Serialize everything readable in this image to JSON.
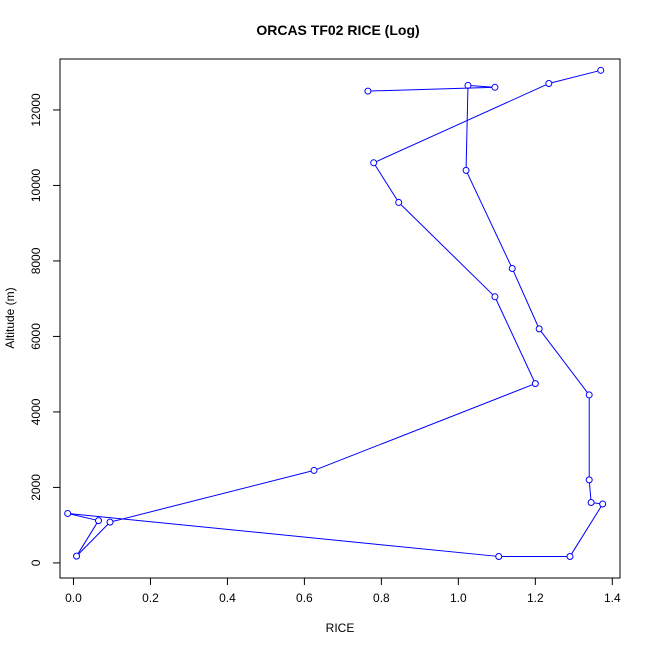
{
  "chart_data": {
    "type": "line",
    "title": "ORCAS TF02 RICE (Log)",
    "xlabel": "RICE",
    "ylabel": "Altitude (m)",
    "xlim": [
      -0.035,
      1.42
    ],
    "ylim": [
      -400,
      13350
    ],
    "x_ticks": [
      0,
      0.2,
      0.4,
      0.6,
      0.8,
      1.0,
      1.2,
      1.4
    ],
    "x_tick_labels": [
      "0.0",
      "0.2",
      "0.4",
      "0.6",
      "0.8",
      "1.0",
      "1.2",
      "1.4"
    ],
    "y_ticks": [
      0,
      2000,
      4000,
      6000,
      8000,
      10000,
      12000
    ],
    "y_tick_labels": [
      "0",
      "2000",
      "4000",
      "6000",
      "8000",
      "10000",
      "12000"
    ],
    "grid": false,
    "markers": "open-circle",
    "color": "#0000ff",
    "series": [
      {
        "x": [
          1.37,
          1.235,
          0.78,
          0.845,
          1.095,
          1.2,
          0.625,
          0.095,
          0.008,
          0.065,
          -0.015,
          1.105,
          1.29,
          1.375,
          1.345,
          1.34,
          1.34,
          1.21,
          1.14,
          1.02,
          1.025,
          1.095,
          0.765
        ],
        "y": [
          13050,
          12700,
          10600,
          9550,
          7050,
          4750,
          2450,
          1080,
          180,
          1120,
          1310,
          170,
          170,
          1560,
          1600,
          2200,
          4450,
          6200,
          7800,
          10400,
          12650,
          12600,
          12500
        ]
      }
    ]
  }
}
